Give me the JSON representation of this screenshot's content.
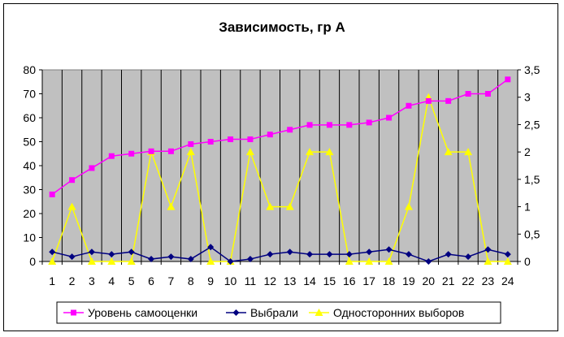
{
  "chart_data": {
    "type": "line",
    "title": "Зависимость, гр А",
    "categories": [
      "1",
      "2",
      "3",
      "4",
      "5",
      "6",
      "7",
      "8",
      "9",
      "10",
      "11",
      "12",
      "13",
      "14",
      "15",
      "16",
      "17",
      "18",
      "19",
      "20",
      "21",
      "22",
      "23",
      "24"
    ],
    "y_left": {
      "ticks": [
        "0",
        "10",
        "20",
        "30",
        "40",
        "50",
        "60",
        "70",
        "80"
      ],
      "ylim": [
        0,
        80
      ]
    },
    "y_right": {
      "ticks": [
        "0",
        "0,5",
        "1",
        "1,5",
        "2",
        "2,5",
        "3",
        "3,5"
      ],
      "ylim": [
        0,
        3.5
      ]
    },
    "plot_area_color": "#C0C0C0",
    "grid": "vertical",
    "legend_position": "bottom",
    "series": [
      {
        "name": "Уровень самооценки",
        "axis": "left",
        "color": "#FF00FF",
        "marker": "square",
        "values": [
          28,
          34,
          39,
          44,
          45,
          46,
          46,
          49,
          50,
          51,
          51,
          53,
          55,
          57,
          57,
          57,
          58,
          60,
          65,
          67,
          67,
          70,
          70,
          76
        ]
      },
      {
        "name": "Выбрали",
        "axis": "left",
        "color": "#000080",
        "marker": "diamond",
        "values": [
          4,
          2,
          4,
          3,
          4,
          1,
          2,
          1,
          6,
          0,
          1,
          3,
          4,
          3,
          3,
          3,
          4,
          5,
          3,
          0,
          3,
          2,
          5,
          3
        ]
      },
      {
        "name": "Односторонних выборов",
        "axis": "right",
        "color": "#FFFF00",
        "marker": "triangle",
        "values": [
          0,
          1,
          0,
          0,
          0,
          2,
          1,
          2,
          0,
          0,
          2,
          1,
          1,
          2,
          2,
          0,
          0,
          0,
          1,
          3,
          2,
          2,
          0,
          0
        ]
      }
    ]
  }
}
